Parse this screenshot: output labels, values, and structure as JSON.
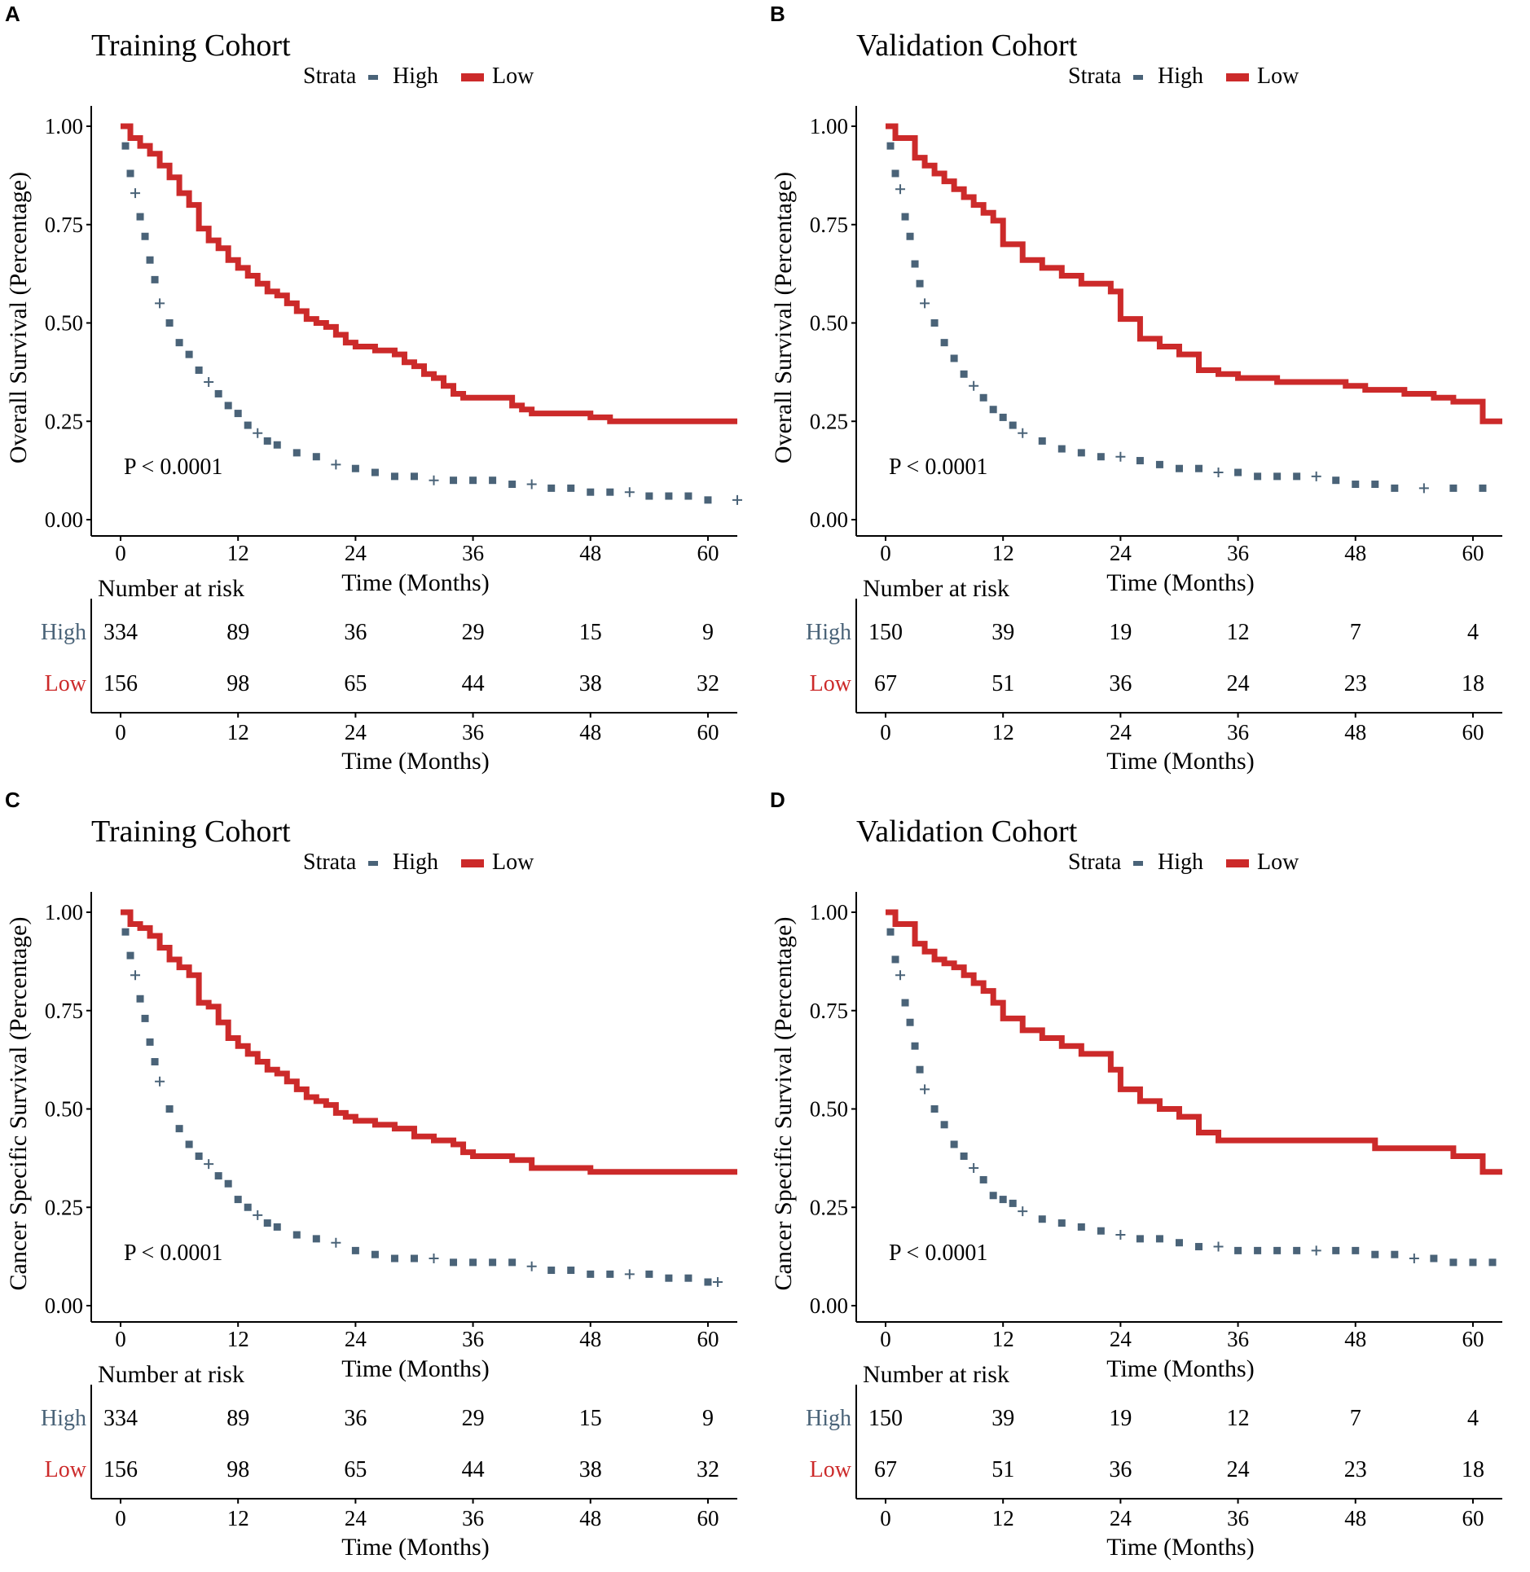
{
  "colors": {
    "high": "#4a6378",
    "low": "#cc2a2a"
  },
  "legend": {
    "title": "Strata",
    "high": "High",
    "low": "Low"
  },
  "risk_table": {
    "title": "Number at risk",
    "row_high": "High",
    "row_low": "Low"
  },
  "axis": {
    "x_label": "Time (Months)",
    "x_ticks": [
      "0",
      "12",
      "24",
      "36",
      "48",
      "60"
    ],
    "y_ticks": [
      "0.00",
      "0.25",
      "0.50",
      "0.75",
      "1.00"
    ]
  },
  "panels": [
    {
      "letter": "A",
      "title": "Training Cohort",
      "ylabel": "Overall Survival (Percentage)",
      "pvalue": "P < 0.0001",
      "risk_high": [
        "334",
        "89",
        "36",
        "29",
        "15",
        "9"
      ],
      "risk_low": [
        "156",
        "98",
        "65",
        "44",
        "38",
        "32"
      ]
    },
    {
      "letter": "B",
      "title": "Validation Cohort",
      "ylabel": "Overall Survival (Percentage)",
      "pvalue": "P < 0.0001",
      "risk_high": [
        "150",
        "39",
        "19",
        "12",
        "7",
        "4"
      ],
      "risk_low": [
        "67",
        "51",
        "36",
        "24",
        "23",
        "18"
      ]
    },
    {
      "letter": "C",
      "title": "Training Cohort",
      "ylabel": "Cancer Specific Survival (Percentage)",
      "pvalue": "P < 0.0001",
      "risk_high": [
        "334",
        "89",
        "36",
        "29",
        "15",
        "9"
      ],
      "risk_low": [
        "156",
        "98",
        "65",
        "44",
        "38",
        "32"
      ]
    },
    {
      "letter": "D",
      "title": "Validation Cohort",
      "ylabel": "Cancer Specific Survival (Percentage)",
      "pvalue": "P < 0.0001",
      "risk_high": [
        "150",
        "39",
        "19",
        "12",
        "7",
        "4"
      ],
      "risk_low": [
        "67",
        "51",
        "36",
        "24",
        "23",
        "18"
      ]
    }
  ],
  "chart_data": [
    {
      "type": "line",
      "subtype": "kaplan-meier",
      "title": "Training Cohort",
      "xlabel": "Time (Months)",
      "ylabel": "Overall Survival (Percentage)",
      "xlim": [
        0,
        63
      ],
      "ylim": [
        0,
        1
      ],
      "x_ticks": [
        0,
        12,
        24,
        36,
        48,
        60
      ],
      "y_ticks": [
        0,
        0.25,
        0.5,
        0.75,
        1
      ],
      "series": [
        {
          "name": "Low",
          "step": true,
          "style": "solid",
          "x": [
            0,
            1,
            2,
            3,
            4,
            5,
            6,
            7,
            8,
            9,
            10,
            11,
            12,
            13,
            14,
            15,
            16,
            17,
            18,
            19,
            20,
            21,
            22,
            23,
            24,
            26,
            28,
            29,
            30,
            31,
            32,
            33,
            34,
            35,
            36,
            38,
            40,
            41,
            42,
            44,
            46,
            48,
            50,
            52,
            55,
            57,
            60,
            63
          ],
          "values": [
            1.0,
            0.97,
            0.95,
            0.93,
            0.9,
            0.87,
            0.83,
            0.8,
            0.74,
            0.71,
            0.69,
            0.66,
            0.64,
            0.62,
            0.6,
            0.58,
            0.57,
            0.55,
            0.53,
            0.51,
            0.5,
            0.49,
            0.47,
            0.45,
            0.44,
            0.43,
            0.42,
            0.4,
            0.39,
            0.37,
            0.36,
            0.34,
            0.32,
            0.31,
            0.31,
            0.31,
            0.29,
            0.28,
            0.27,
            0.27,
            0.27,
            0.26,
            0.25,
            0.25,
            0.25,
            0.25,
            0.25,
            0.25
          ]
        },
        {
          "name": "High",
          "step": false,
          "style": "censor-marks",
          "x": [
            0.5,
            1,
            1.5,
            2,
            2.5,
            3,
            3.5,
            4,
            5,
            6,
            7,
            8,
            9,
            10,
            11,
            12,
            13,
            14,
            15,
            16,
            18,
            20,
            22,
            24,
            26,
            28,
            30,
            32,
            34,
            36,
            38,
            40,
            42,
            44,
            46,
            48,
            50,
            52,
            54,
            56,
            58,
            60,
            63
          ],
          "values": [
            0.95,
            0.88,
            0.83,
            0.77,
            0.72,
            0.66,
            0.61,
            0.55,
            0.5,
            0.45,
            0.42,
            0.38,
            0.35,
            0.32,
            0.29,
            0.27,
            0.24,
            0.22,
            0.2,
            0.19,
            0.17,
            0.16,
            0.14,
            0.13,
            0.12,
            0.11,
            0.11,
            0.1,
            0.1,
            0.1,
            0.1,
            0.09,
            0.09,
            0.08,
            0.08,
            0.07,
            0.07,
            0.07,
            0.06,
            0.06,
            0.06,
            0.05,
            0.05
          ]
        }
      ],
      "annotations": [
        "P < 0.0001"
      ]
    },
    {
      "type": "line",
      "subtype": "kaplan-meier",
      "title": "Validation Cohort",
      "xlabel": "Time (Months)",
      "ylabel": "Overall Survival (Percentage)",
      "xlim": [
        0,
        63
      ],
      "ylim": [
        0,
        1
      ],
      "x_ticks": [
        0,
        12,
        24,
        36,
        48,
        60
      ],
      "y_ticks": [
        0,
        0.25,
        0.5,
        0.75,
        1
      ],
      "series": [
        {
          "name": "Low",
          "step": true,
          "style": "solid",
          "x": [
            0,
            1,
            3,
            4,
            5,
            6,
            7,
            8,
            9,
            10,
            11,
            12,
            13,
            14,
            16,
            18,
            20,
            22,
            23,
            24,
            26,
            28,
            30,
            32,
            34,
            36,
            40,
            44,
            47,
            49,
            53,
            56,
            58,
            61,
            63
          ],
          "values": [
            1.0,
            0.97,
            0.92,
            0.9,
            0.88,
            0.86,
            0.84,
            0.82,
            0.8,
            0.78,
            0.76,
            0.7,
            0.7,
            0.66,
            0.64,
            0.62,
            0.6,
            0.6,
            0.58,
            0.51,
            0.46,
            0.44,
            0.42,
            0.38,
            0.37,
            0.36,
            0.35,
            0.35,
            0.34,
            0.33,
            0.32,
            0.31,
            0.3,
            0.25,
            0.25
          ]
        },
        {
          "name": "High",
          "step": false,
          "style": "censor-marks",
          "x": [
            0.5,
            1,
            1.5,
            2,
            2.5,
            3,
            3.5,
            4,
            5,
            6,
            7,
            8,
            9,
            10,
            11,
            12,
            13,
            14,
            16,
            18,
            20,
            22,
            24,
            26,
            28,
            30,
            32,
            34,
            36,
            38,
            40,
            42,
            44,
            46,
            48,
            50,
            52,
            55,
            58,
            61
          ],
          "values": [
            0.95,
            0.88,
            0.84,
            0.77,
            0.72,
            0.65,
            0.6,
            0.55,
            0.5,
            0.45,
            0.41,
            0.37,
            0.34,
            0.31,
            0.28,
            0.26,
            0.24,
            0.22,
            0.2,
            0.18,
            0.17,
            0.16,
            0.16,
            0.15,
            0.14,
            0.13,
            0.13,
            0.12,
            0.12,
            0.11,
            0.11,
            0.11,
            0.11,
            0.1,
            0.09,
            0.09,
            0.08,
            0.08,
            0.08,
            0.08
          ]
        }
      ],
      "annotations": [
        "P < 0.0001"
      ]
    },
    {
      "type": "line",
      "subtype": "kaplan-meier",
      "title": "Training Cohort",
      "xlabel": "Time (Months)",
      "ylabel": "Cancer Specific Survival (Percentage)",
      "xlim": [
        0,
        63
      ],
      "ylim": [
        0,
        1
      ],
      "x_ticks": [
        0,
        12,
        24,
        36,
        48,
        60
      ],
      "y_ticks": [
        0,
        0.25,
        0.5,
        0.75,
        1
      ],
      "series": [
        {
          "name": "Low",
          "step": true,
          "style": "solid",
          "x": [
            0,
            1,
            2,
            3,
            4,
            5,
            6,
            7,
            8,
            9,
            10,
            11,
            12,
            13,
            14,
            15,
            16,
            17,
            18,
            19,
            20,
            21,
            22,
            23,
            24,
            26,
            28,
            30,
            32,
            34,
            35,
            36,
            38,
            40,
            42,
            44,
            46,
            48,
            50,
            55,
            60,
            63
          ],
          "values": [
            1.0,
            0.97,
            0.96,
            0.94,
            0.91,
            0.88,
            0.86,
            0.84,
            0.77,
            0.76,
            0.72,
            0.68,
            0.66,
            0.64,
            0.62,
            0.6,
            0.59,
            0.57,
            0.55,
            0.53,
            0.52,
            0.51,
            0.49,
            0.48,
            0.47,
            0.46,
            0.45,
            0.43,
            0.42,
            0.41,
            0.39,
            0.38,
            0.38,
            0.37,
            0.35,
            0.35,
            0.35,
            0.34,
            0.34,
            0.34,
            0.34,
            0.34
          ]
        },
        {
          "name": "High",
          "step": false,
          "style": "censor-marks",
          "x": [
            0.5,
            1,
            1.5,
            2,
            2.5,
            3,
            3.5,
            4,
            5,
            6,
            7,
            8,
            9,
            10,
            11,
            12,
            13,
            14,
            15,
            16,
            18,
            20,
            22,
            24,
            26,
            28,
            30,
            32,
            34,
            36,
            38,
            40,
            42,
            44,
            46,
            48,
            50,
            52,
            54,
            56,
            58,
            60,
            61
          ],
          "values": [
            0.95,
            0.89,
            0.84,
            0.78,
            0.73,
            0.67,
            0.62,
            0.57,
            0.5,
            0.45,
            0.41,
            0.38,
            0.36,
            0.33,
            0.31,
            0.27,
            0.25,
            0.23,
            0.21,
            0.2,
            0.18,
            0.17,
            0.16,
            0.14,
            0.13,
            0.12,
            0.12,
            0.12,
            0.11,
            0.11,
            0.11,
            0.11,
            0.1,
            0.09,
            0.09,
            0.08,
            0.08,
            0.08,
            0.08,
            0.07,
            0.07,
            0.06,
            0.06
          ]
        }
      ],
      "annotations": [
        "P < 0.0001"
      ]
    },
    {
      "type": "line",
      "subtype": "kaplan-meier",
      "title": "Validation Cohort",
      "xlabel": "Time (Months)",
      "ylabel": "Cancer Specific Survival (Percentage)",
      "xlim": [
        0,
        63
      ],
      "ylim": [
        0,
        1
      ],
      "x_ticks": [
        0,
        12,
        24,
        36,
        48,
        60
      ],
      "y_ticks": [
        0,
        0.25,
        0.5,
        0.75,
        1
      ],
      "series": [
        {
          "name": "Low",
          "step": true,
          "style": "solid",
          "x": [
            0,
            1,
            3,
            4,
            5,
            6,
            7,
            8,
            9,
            10,
            11,
            12,
            14,
            16,
            18,
            20,
            23,
            24,
            26,
            28,
            30,
            32,
            34,
            36,
            40,
            45,
            50,
            55,
            58,
            61,
            63
          ],
          "values": [
            1.0,
            0.97,
            0.92,
            0.9,
            0.88,
            0.87,
            0.86,
            0.84,
            0.82,
            0.8,
            0.77,
            0.73,
            0.7,
            0.68,
            0.66,
            0.64,
            0.6,
            0.55,
            0.52,
            0.5,
            0.48,
            0.44,
            0.42,
            0.42,
            0.42,
            0.42,
            0.4,
            0.4,
            0.38,
            0.34,
            0.34
          ]
        },
        {
          "name": "High",
          "step": false,
          "style": "censor-marks",
          "x": [
            0.5,
            1,
            1.5,
            2,
            2.5,
            3,
            3.5,
            4,
            5,
            6,
            7,
            8,
            9,
            10,
            11,
            12,
            13,
            14,
            16,
            18,
            20,
            22,
            24,
            26,
            28,
            30,
            32,
            34,
            36,
            38,
            40,
            42,
            44,
            46,
            48,
            50,
            52,
            54,
            56,
            58,
            60,
            62
          ],
          "values": [
            0.95,
            0.88,
            0.84,
            0.77,
            0.72,
            0.66,
            0.6,
            0.55,
            0.5,
            0.46,
            0.41,
            0.38,
            0.35,
            0.32,
            0.28,
            0.27,
            0.26,
            0.24,
            0.22,
            0.21,
            0.2,
            0.19,
            0.18,
            0.17,
            0.17,
            0.16,
            0.15,
            0.15,
            0.14,
            0.14,
            0.14,
            0.14,
            0.14,
            0.14,
            0.14,
            0.13,
            0.13,
            0.12,
            0.12,
            0.11,
            0.11,
            0.11
          ]
        }
      ],
      "annotations": [
        "P < 0.0001"
      ]
    }
  ]
}
